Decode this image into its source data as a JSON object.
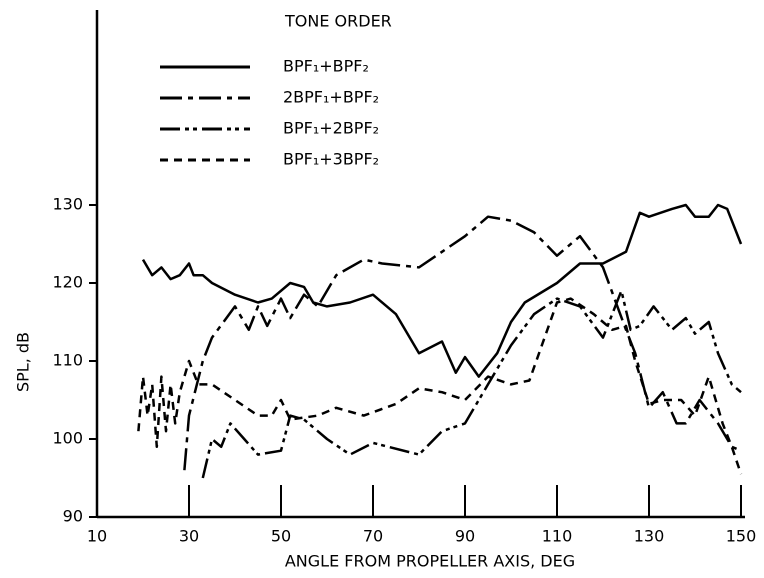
{
  "chart_data": {
    "type": "line",
    "legend_title": "TONE ORDER",
    "xlabel": "ANGLE FROM PROPELLER AXIS, DEG",
    "ylabel": "SPL, dB",
    "xlim": [
      10,
      150
    ],
    "xticks": [
      10,
      30,
      50,
      70,
      90,
      110,
      130,
      150
    ],
    "ylim": [
      90,
      155
    ],
    "yticks": [
      90,
      100,
      110,
      120,
      130
    ],
    "legend": "upper left",
    "series": [
      {
        "name": "BPF₁+BPF₂",
        "color": "#000000",
        "dash": "none",
        "x": [
          20,
          22,
          24,
          26,
          28,
          30,
          31,
          33,
          35,
          40,
          45,
          48,
          52,
          55,
          57,
          60,
          65,
          70,
          75,
          80,
          85,
          88,
          90,
          93,
          97,
          100,
          103,
          110,
          115,
          120,
          125,
          128,
          130,
          135,
          138,
          140,
          143,
          145,
          147,
          150
        ],
        "values": [
          123,
          121,
          122,
          120.5,
          121,
          122.5,
          121,
          121,
          120,
          118.5,
          117.5,
          118,
          120,
          119.5,
          117.5,
          117,
          117.5,
          118.5,
          116,
          111,
          112.5,
          108.5,
          110.5,
          108,
          111,
          115,
          117.5,
          120,
          122.5,
          122.5,
          124,
          129,
          128.5,
          129.5,
          130,
          128.5,
          128.5,
          130,
          129.5,
          125
        ]
      },
      {
        "name": "2BPF₁+BPF₂",
        "color": "#000000",
        "dash": "22 6 5 6",
        "x": [
          29,
          30,
          33,
          35,
          40,
          43,
          45,
          47,
          50,
          52,
          55,
          58,
          62,
          68,
          72,
          80,
          85,
          90,
          95,
          100,
          105,
          110,
          115,
          120,
          125,
          127,
          130,
          133,
          136,
          138,
          141,
          145,
          148,
          150
        ],
        "values": [
          96,
          103,
          110,
          113,
          117,
          114,
          117,
          114.5,
          118,
          115.5,
          118.5,
          117,
          121,
          123,
          122.5,
          122,
          124,
          126,
          128.5,
          128,
          126.5,
          123.5,
          126,
          122,
          114,
          111,
          104,
          106,
          102,
          102,
          105,
          102,
          99,
          98.5
        ]
      },
      {
        "name": "BPF₁+2BPF₂",
        "color": "#000000",
        "dash": "20 5 4 4 4 5",
        "x": [
          33,
          35,
          37,
          39,
          42,
          45,
          50,
          52,
          55,
          60,
          65,
          70,
          80,
          85,
          90,
          95,
          100,
          105,
          110,
          115,
          120,
          124,
          126,
          128,
          131,
          135,
          138,
          140,
          143,
          145,
          148,
          150
        ],
        "values": [
          95,
          100,
          99,
          102,
          100,
          98,
          98.5,
          103,
          102.5,
          100,
          98,
          99.5,
          98,
          101,
          102,
          107,
          112,
          116,
          118,
          117,
          113,
          119,
          114,
          114.5,
          117,
          114,
          115.5,
          113.5,
          115,
          111,
          107,
          106
        ]
      },
      {
        "name": "BPF₁+3BPF₂",
        "color": "#000000",
        "dash": "8 6",
        "x": [
          19,
          20,
          21,
          22,
          23,
          24,
          25,
          26,
          27,
          28,
          30,
          32,
          35,
          45,
          48,
          50,
          52,
          58,
          62,
          68,
          75,
          80,
          85,
          90,
          95,
          100,
          104,
          110,
          113,
          118,
          122,
          125,
          127,
          130,
          133,
          137,
          140,
          143,
          146,
          148,
          150
        ],
        "values": [
          101,
          108,
          103,
          107,
          99,
          108,
          101,
          107,
          102,
          106,
          110,
          107,
          107,
          103,
          103,
          105,
          102.5,
          103,
          104,
          103,
          104.5,
          106.5,
          106,
          105,
          108,
          107,
          107.5,
          117.5,
          118,
          116,
          114,
          114.5,
          110,
          104.5,
          105,
          105,
          103,
          108,
          102,
          99,
          95.5
        ]
      }
    ]
  }
}
